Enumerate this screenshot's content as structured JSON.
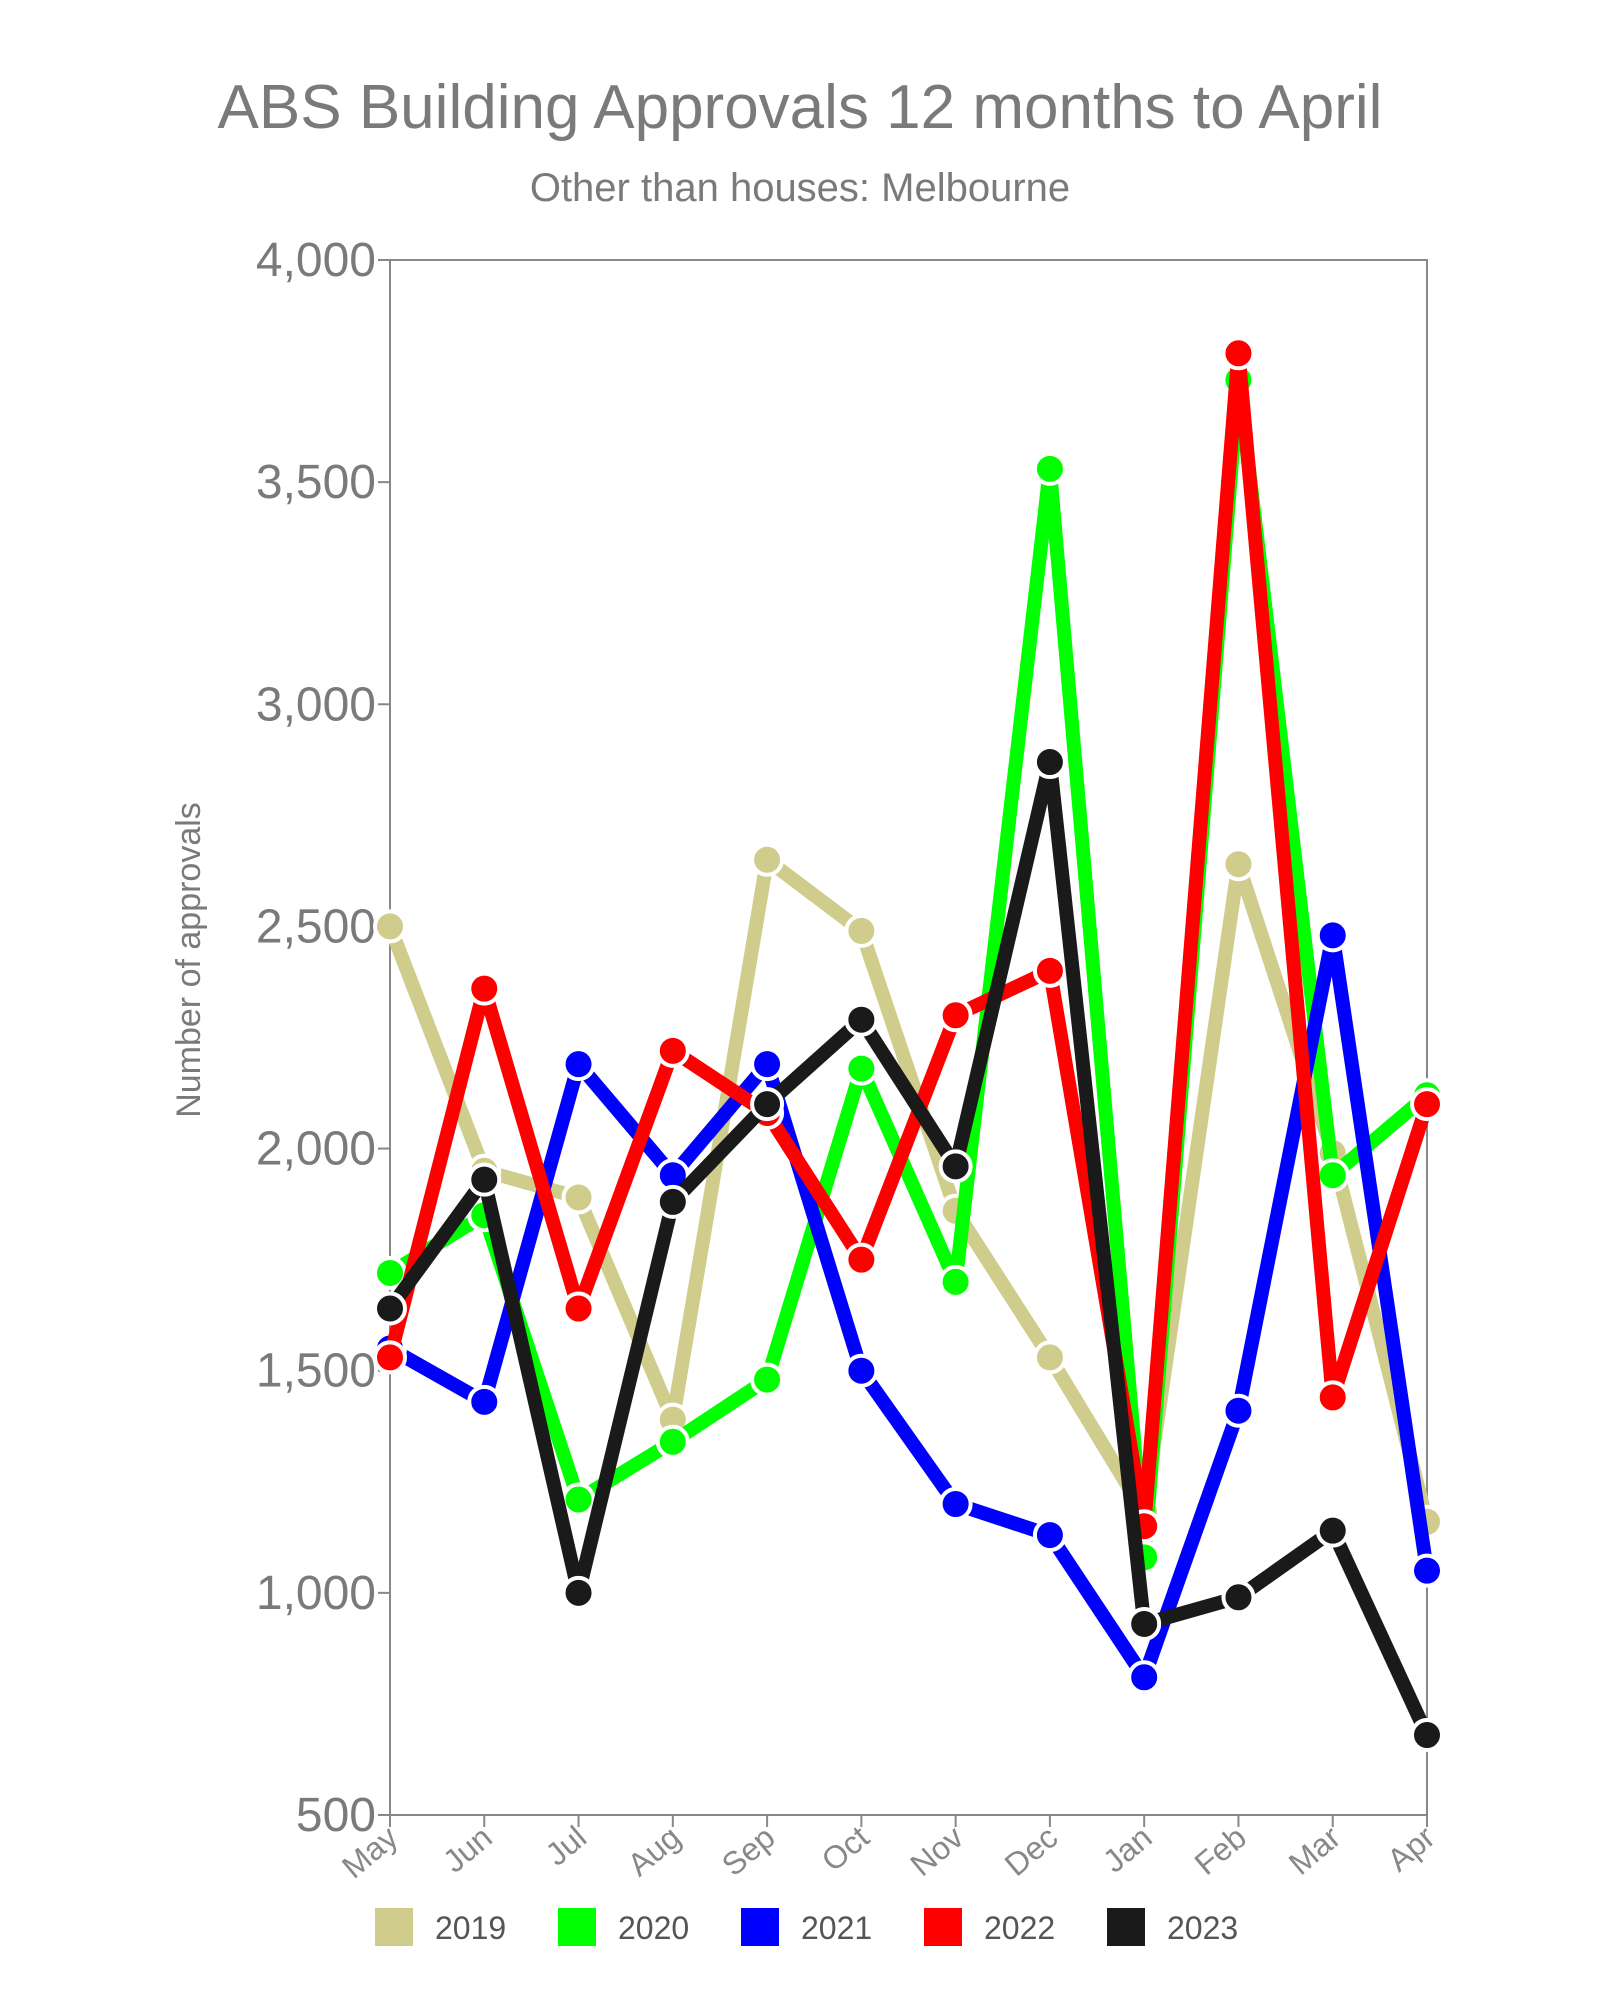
{
  "colors": {
    "2019": "#cfcc8c",
    "2020": "#00ff00",
    "2021": "#0000ff",
    "2022": "#ff0000",
    "2023": "#1a1a1a",
    "axis": "#888888",
    "text": "#7a7a7a"
  },
  "chart_data": {
    "type": "line",
    "title": "ABS Building Approvals 12 months to April",
    "subtitle": "Other than houses: Melbourne",
    "xlabel": "",
    "ylabel": "Number of approvals",
    "categories": [
      "May",
      "Jun",
      "Jul",
      "Aug",
      "Sep",
      "Oct",
      "Nov",
      "Dec",
      "Jan",
      "Feb",
      "Mar",
      "Apr"
    ],
    "ylim": [
      500,
      4000
    ],
    "yticks": [
      "4,000",
      "3,500",
      "3,000",
      "2,500",
      "2,000",
      "1,500",
      "1,000",
      "500"
    ],
    "ytick_values": [
      4000,
      3500,
      3000,
      2500,
      2000,
      1500,
      1000,
      500
    ],
    "grid": false,
    "legend_position": "bottom",
    "series": [
      {
        "name": "2019",
        "values": [
          2500,
          1950,
          1890,
          1390,
          2650,
          2490,
          1860,
          1530,
          1180,
          2640,
          1990,
          1160
        ]
      },
      {
        "name": "2020",
        "values": [
          1720,
          1850,
          1210,
          1340,
          1480,
          2180,
          1700,
          3530,
          1080,
          3730,
          1940,
          2120
        ]
      },
      {
        "name": "2021",
        "values": [
          1550,
          1430,
          2190,
          1940,
          2190,
          1500,
          1200,
          1130,
          810,
          1410,
          2480,
          1050
        ]
      },
      {
        "name": "2022",
        "values": [
          1530,
          2360,
          1640,
          2220,
          2080,
          1750,
          2300,
          2400,
          1150,
          3790,
          1440,
          2100
        ]
      },
      {
        "name": "2023",
        "values": [
          1640,
          1930,
          1000,
          1880,
          2100,
          2290,
          1960,
          2870,
          930,
          990,
          1140,
          680
        ]
      }
    ]
  }
}
